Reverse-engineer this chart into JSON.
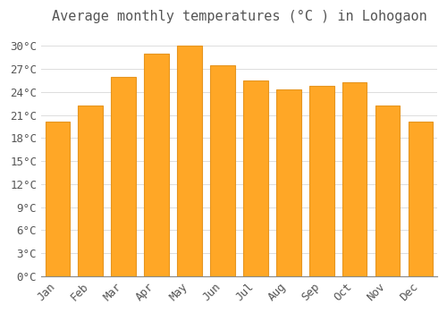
{
  "title": "Average monthly temperatures (°C ) in Lohogaon",
  "months": [
    "Jan",
    "Feb",
    "Mar",
    "Apr",
    "May",
    "Jun",
    "Jul",
    "Aug",
    "Sep",
    "Oct",
    "Nov",
    "Dec"
  ],
  "values": [
    20.2,
    22.2,
    26.0,
    29.0,
    30.0,
    27.5,
    25.5,
    24.3,
    24.8,
    25.3,
    22.2,
    20.2
  ],
  "bar_color": "#FFA726",
  "bar_edge_color": "#E69520",
  "background_color": "#FFFFFF",
  "grid_color": "#DDDDDD",
  "text_color": "#555555",
  "ylim": [
    0,
    32
  ],
  "yticks": [
    0,
    3,
    6,
    9,
    12,
    15,
    18,
    21,
    24,
    27,
    30
  ],
  "title_fontsize": 11,
  "tick_fontsize": 9,
  "bar_width": 0.75
}
